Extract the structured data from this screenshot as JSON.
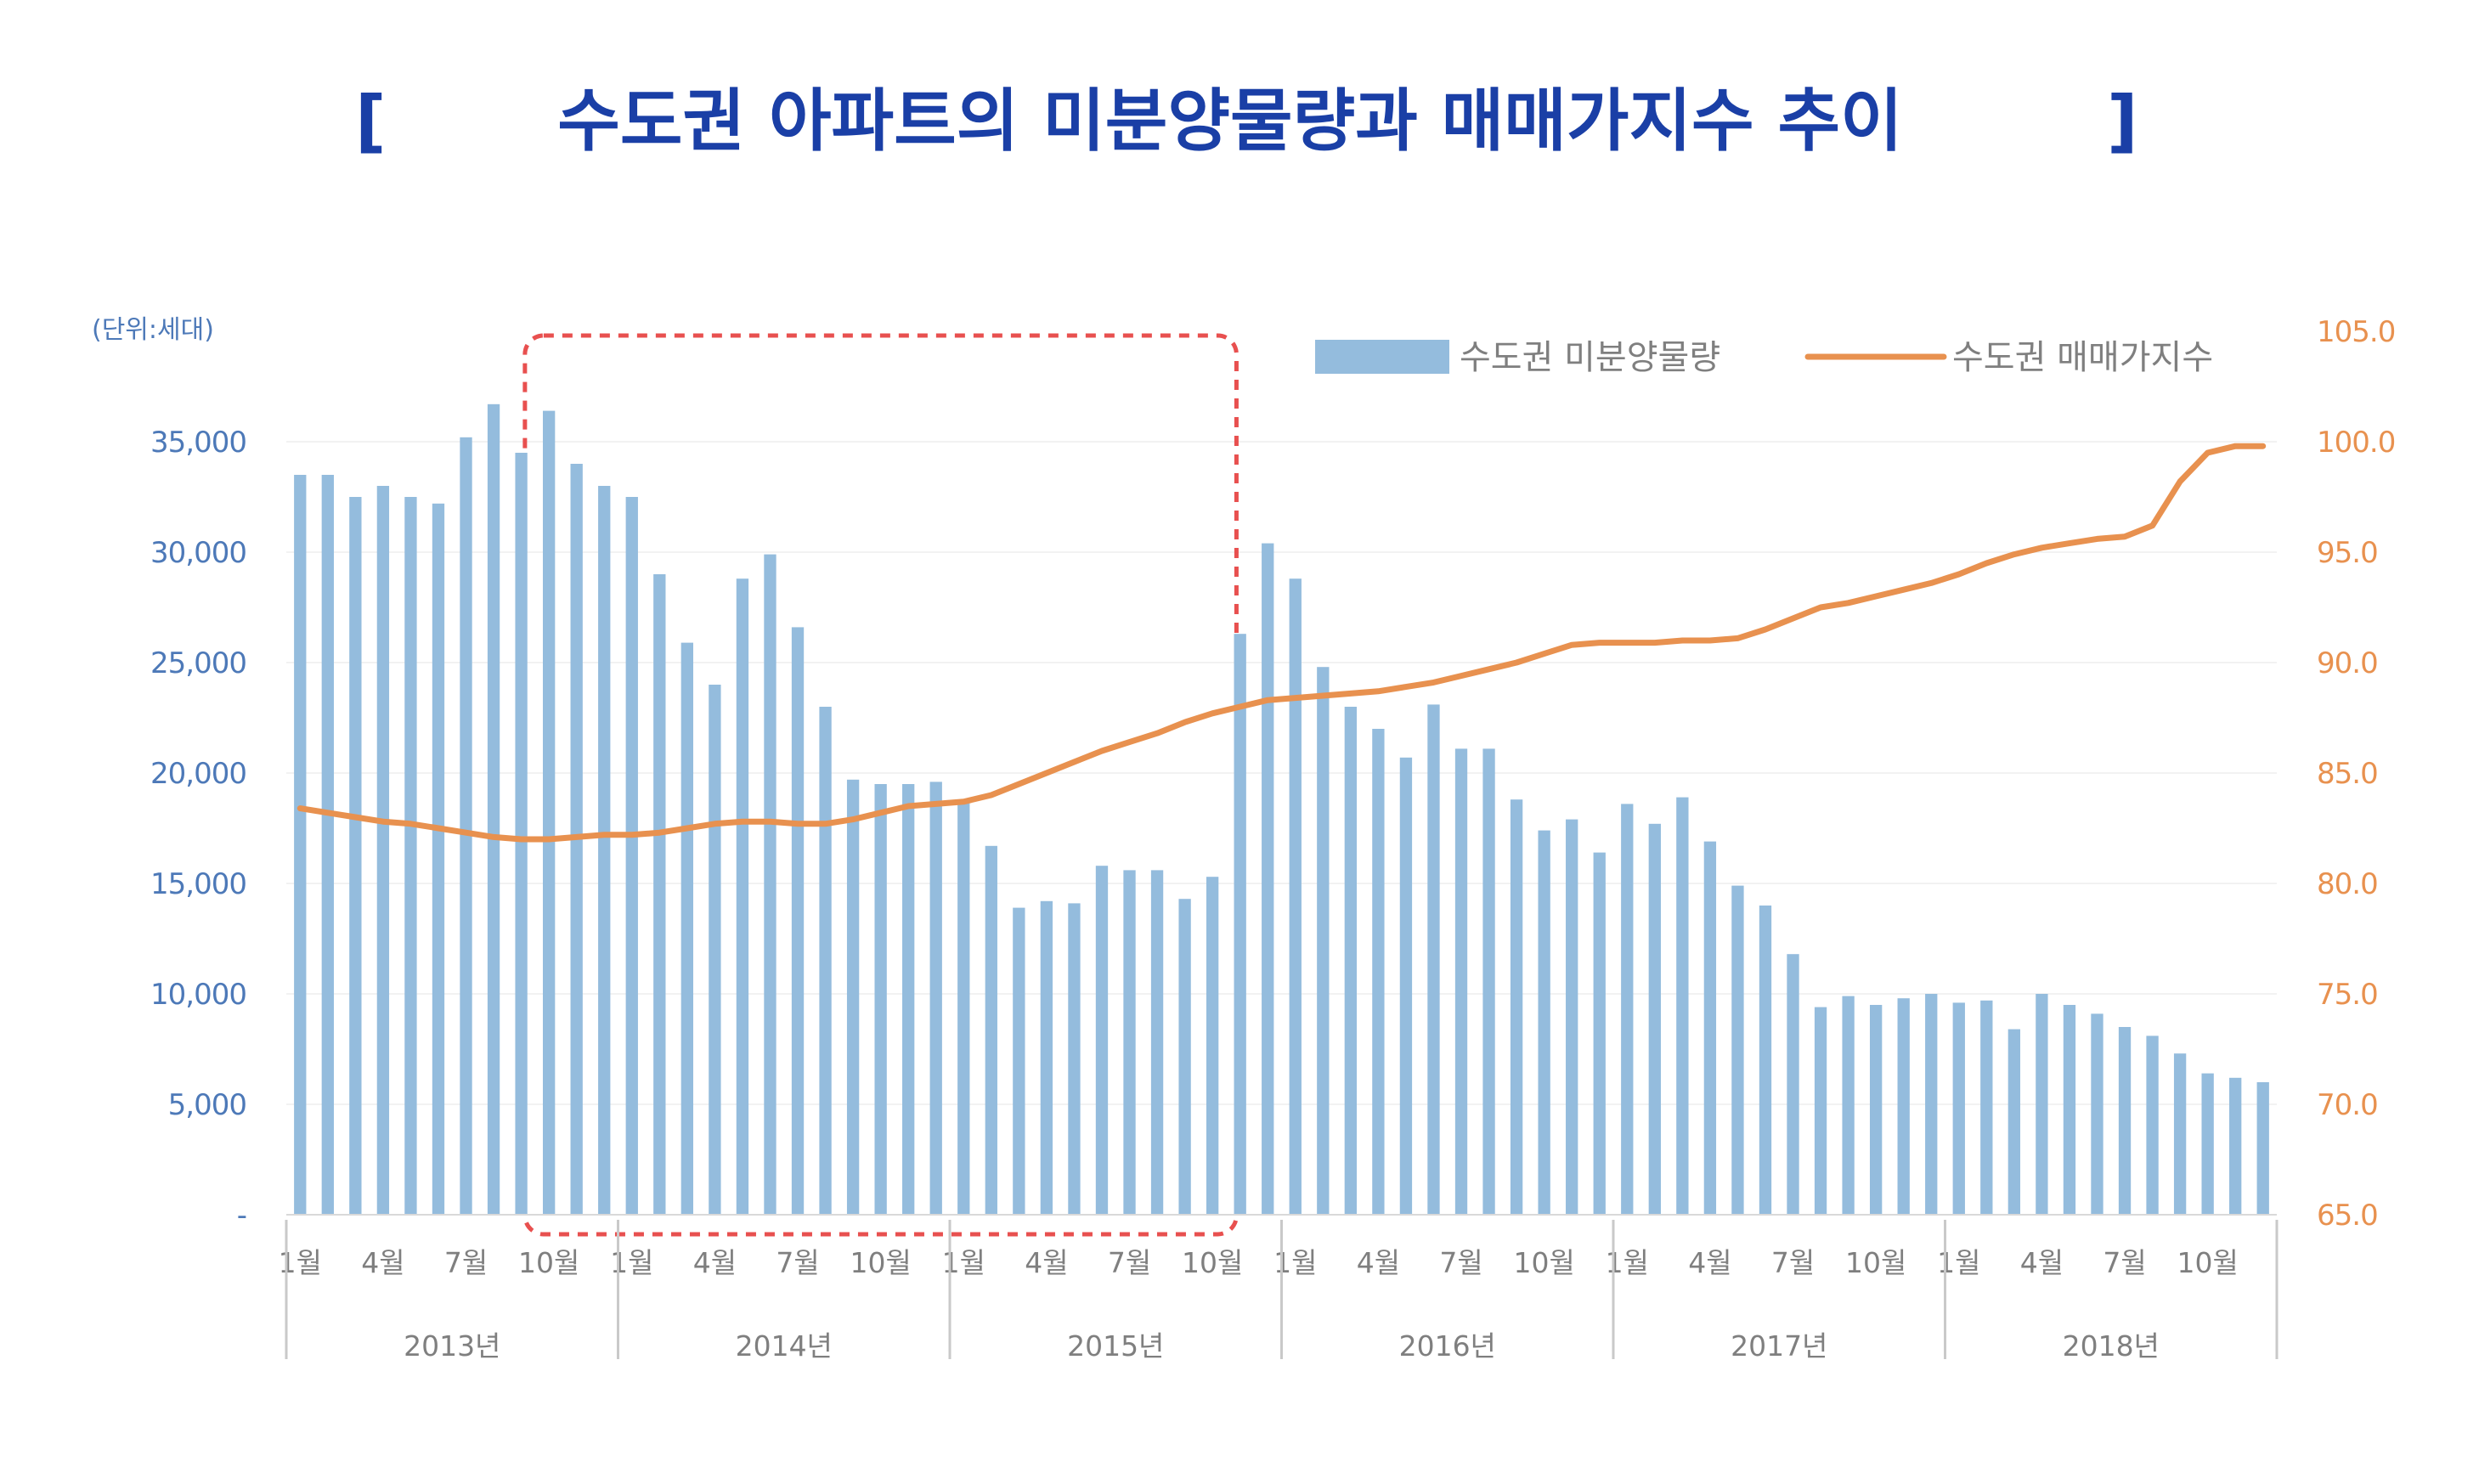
{
  "title": {
    "open_bracket": "[",
    "text": "수도권 아파트의 미분양물량과 매매가지수 추이",
    "close_bracket": "]",
    "color": "#1a3fa6"
  },
  "chart_data": {
    "type": "bar",
    "unit_label": "(단위:세대)",
    "left_axis": {
      "ylim": [
        0,
        40000
      ],
      "ticks": [
        0,
        5000,
        10000,
        15000,
        20000,
        25000,
        30000,
        35000
      ],
      "tick_labels": [
        "-",
        "5,000",
        "10,000",
        "15,000",
        "20,000",
        "25,000",
        "30,000",
        "35,000"
      ],
      "color": "#4d79b8"
    },
    "right_axis": {
      "ylim": [
        65,
        105
      ],
      "ticks": [
        65,
        70,
        75,
        80,
        85,
        90,
        95,
        100,
        105
      ],
      "tick_labels": [
        "65.0",
        "70.0",
        "75.0",
        "80.0",
        "85.0",
        "90.0",
        "95.0",
        "100.0",
        "105.0"
      ],
      "color": "#e8914f"
    },
    "x_month_labels": [
      {
        "index": 0,
        "label": "1월"
      },
      {
        "index": 3,
        "label": "4월"
      },
      {
        "index": 6,
        "label": "7월"
      },
      {
        "index": 9,
        "label": "10월"
      },
      {
        "index": 12,
        "label": "1월"
      },
      {
        "index": 15,
        "label": "4월"
      },
      {
        "index": 18,
        "label": "7월"
      },
      {
        "index": 21,
        "label": "10월"
      },
      {
        "index": 24,
        "label": "1월"
      },
      {
        "index": 27,
        "label": "4월"
      },
      {
        "index": 30,
        "label": "7월"
      },
      {
        "index": 33,
        "label": "10월"
      },
      {
        "index": 36,
        "label": "1월"
      },
      {
        "index": 39,
        "label": "4월"
      },
      {
        "index": 42,
        "label": "7월"
      },
      {
        "index": 45,
        "label": "10월"
      },
      {
        "index": 48,
        "label": "1월"
      },
      {
        "index": 51,
        "label": "4월"
      },
      {
        "index": 54,
        "label": "7월"
      },
      {
        "index": 57,
        "label": "10월"
      },
      {
        "index": 60,
        "label": "1월"
      },
      {
        "index": 63,
        "label": "4월"
      },
      {
        "index": 66,
        "label": "7월"
      },
      {
        "index": 69,
        "label": "10월"
      }
    ],
    "x_year_labels": [
      "2013년",
      "2014년",
      "2015년",
      "2016년",
      "2017년",
      "2018년"
    ],
    "series": [
      {
        "name": "수도권 미분양물량",
        "type": "bar",
        "axis": "left",
        "color": "#94bcdd",
        "values": [
          33500,
          33500,
          32500,
          33000,
          32500,
          32200,
          35200,
          36700,
          34500,
          36400,
          34000,
          33000,
          32500,
          29000,
          25900,
          24000,
          28800,
          29900,
          26600,
          23000,
          19700,
          19500,
          19500,
          19600,
          18800,
          16700,
          13900,
          14200,
          14100,
          15800,
          15600,
          15600,
          14300,
          15300,
          26300,
          30400,
          28800,
          24800,
          23000,
          22000,
          20700,
          23100,
          21100,
          21100,
          18800,
          17400,
          17900,
          16400,
          18600,
          17700,
          18900,
          16900,
          14900,
          14000,
          11800,
          9400,
          9900,
          9500,
          9800,
          10000,
          9600,
          9700,
          8400,
          10000,
          9500,
          9100,
          8500,
          8100,
          7300,
          6400,
          6200,
          6000
        ]
      },
      {
        "name": "수도권 매매가지수",
        "type": "line",
        "axis": "right",
        "color": "#e8914f",
        "values": [
          83.4,
          83.2,
          83.0,
          82.8,
          82.7,
          82.5,
          82.3,
          82.1,
          82.0,
          82.0,
          82.1,
          82.2,
          82.2,
          82.3,
          82.5,
          82.7,
          82.8,
          82.8,
          82.7,
          82.7,
          82.9,
          83.2,
          83.5,
          83.6,
          83.7,
          84.0,
          84.5,
          85.0,
          85.5,
          86.0,
          86.4,
          86.8,
          87.3,
          87.7,
          88.0,
          88.3,
          88.4,
          88.5,
          88.6,
          88.7,
          88.9,
          89.1,
          89.4,
          89.7,
          90.0,
          90.4,
          90.8,
          90.9,
          90.9,
          90.9,
          91.0,
          91.0,
          91.1,
          91.5,
          92.0,
          92.5,
          92.7,
          93.0,
          93.3,
          93.6,
          94.0,
          94.5,
          94.9,
          95.2,
          95.4,
          95.6,
          95.7,
          96.2,
          98.2,
          99.5,
          99.8,
          99.8
        ]
      }
    ],
    "highlight": {
      "from_index": 9,
      "to_index": 33,
      "color": "#e8504f",
      "style": "dashed"
    }
  }
}
